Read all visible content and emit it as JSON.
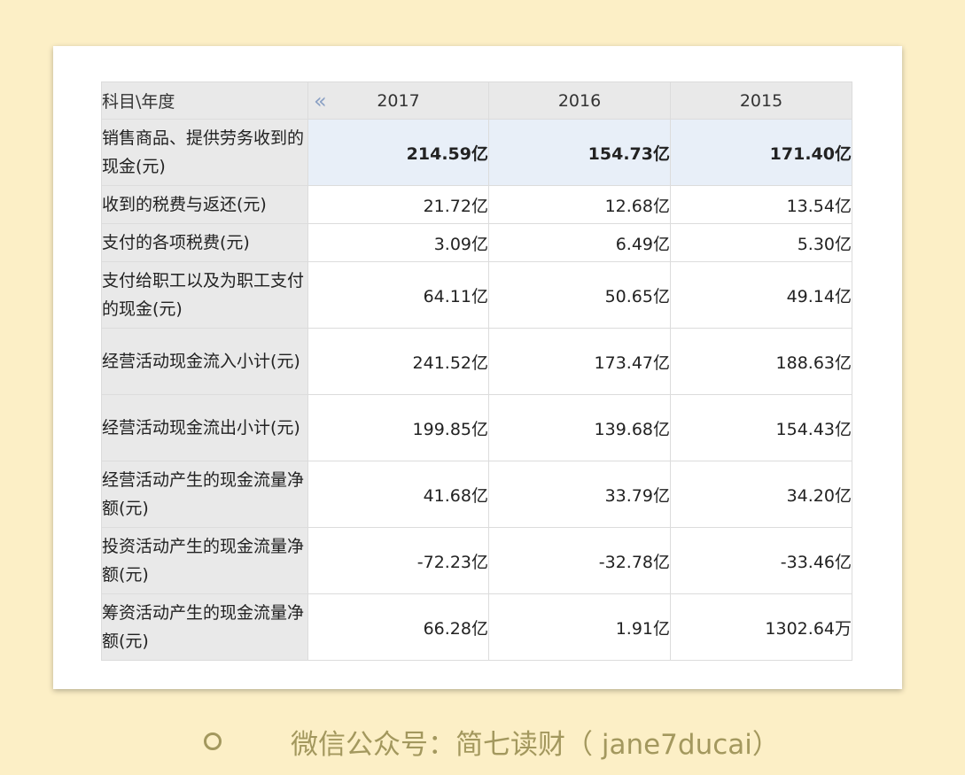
{
  "table": {
    "header_label": "科目\\年度",
    "nav_icon": "double-chevron-left-icon",
    "years": [
      "2017",
      "2016",
      "2015"
    ],
    "rows": [
      {
        "label": "销售商品、提供劳务收到的现金(元)",
        "values": [
          "214.59亿",
          "154.73亿",
          "171.40亿"
        ]
      },
      {
        "label": "收到的税费与返还(元)",
        "values": [
          "21.72亿",
          "12.68亿",
          "13.54亿"
        ]
      },
      {
        "label": "支付的各项税费(元)",
        "values": [
          "3.09亿",
          "6.49亿",
          "5.30亿"
        ]
      },
      {
        "label": "支付给职工以及为职工支付的现金(元)",
        "values": [
          "64.11亿",
          "50.65亿",
          "49.14亿"
        ]
      },
      {
        "label": "经营活动现金流入小计(元)",
        "values": [
          "241.52亿",
          "173.47亿",
          "188.63亿"
        ]
      },
      {
        "label": "经营活动现金流出小计(元)",
        "values": [
          "199.85亿",
          "139.68亿",
          "154.43亿"
        ]
      },
      {
        "label": "经营活动产生的现金流量净额(元)",
        "values": [
          "41.68亿",
          "33.79亿",
          "34.20亿"
        ]
      },
      {
        "label": "投资活动产生的现金流量净额(元)",
        "values": [
          "-72.23亿",
          "-32.78亿",
          "-33.46亿"
        ]
      },
      {
        "label": "筹资活动产生的现金流量净额(元)",
        "values": [
          "66.28亿",
          "1.91亿",
          "1302.64万"
        ]
      }
    ]
  },
  "footer": {
    "icon": "circle-icon",
    "text": "微信公众号：简七读财（ jane7ducai）"
  },
  "colors": {
    "page_background": "#fcefc6",
    "header_background": "#e9e9e9",
    "highlight_row": "#e8eff8",
    "footer_text": "#a3985e",
    "nav_icon": "#8aa0c4"
  }
}
